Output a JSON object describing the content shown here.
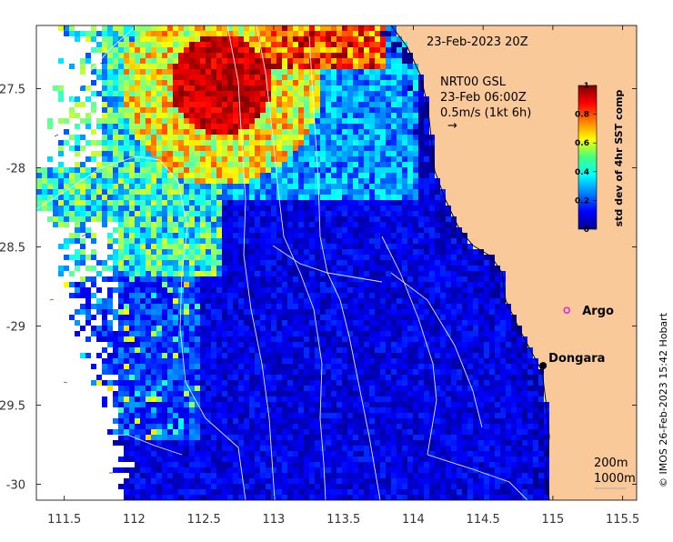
{
  "map": {
    "title": "23-Feb-2023 20Z",
    "legend_lines": [
      "NRT00 GSL",
      "23-Feb 06:00Z",
      "0.5m/s (1kt 6h)"
    ],
    "vector_arrow_glyph": "→",
    "x_ticks": [
      "111.5",
      "112",
      "112.5",
      "113",
      "113.5",
      "114",
      "114.5",
      "115",
      "115.5"
    ],
    "y_ticks": [
      "-27.5",
      "-28",
      "-28.5",
      "-29",
      "-29.5",
      "-30"
    ],
    "lon_range": [
      111.3,
      115.6
    ],
    "lat_range": [
      -30.1,
      -27.1
    ],
    "depth_labels": [
      "200m",
      "1000m"
    ],
    "places": [
      {
        "name": "Argo",
        "lon": 115.1,
        "lat": -28.9,
        "marker": "circle",
        "color": "#e020e0"
      },
      {
        "name": "Dongara",
        "lon": 114.93,
        "lat": -29.25,
        "marker": "dot",
        "color": "#000000"
      }
    ],
    "colorbar": {
      "label": "std dev of 4hr SST comp",
      "ticks": [
        "0",
        "0.2",
        "0.4",
        "0.6",
        "0.8",
        "1"
      ],
      "min": 0,
      "max": 1,
      "colormap": "jet"
    },
    "land_color": "#f9c99a",
    "credit": "© IMOS 26-Feb-2023 15:42 Hobart"
  }
}
